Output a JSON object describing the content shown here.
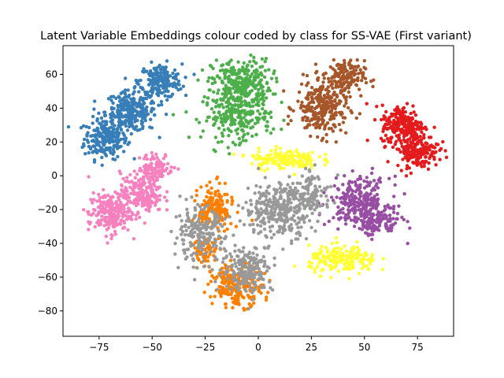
{
  "chart_data": {
    "type": "scatter",
    "title": "Latent Variable Embeddings colour coded by class for SS-VAE (First variant)",
    "xlabel": "",
    "ylabel": "",
    "xlim": [
      -92,
      92
    ],
    "ylim": [
      -95,
      77
    ],
    "xticks": [
      -75,
      -50,
      -25,
      0,
      25,
      50,
      75
    ],
    "yticks": [
      -80,
      -60,
      -40,
      -20,
      0,
      20,
      40,
      60
    ],
    "xtick_labels": [
      "−75",
      "−50",
      "−25",
      "0",
      "25",
      "50",
      "75"
    ],
    "ytick_labels": [
      "−80",
      "−60",
      "−40",
      "−20",
      "0",
      "20",
      "40",
      "60"
    ],
    "grid": false,
    "legend": "none",
    "series": [
      {
        "color": "#377eb8",
        "clusters": [
          {
            "cx": -72,
            "cy": 22,
            "sx": 5,
            "sy": 6,
            "n": 220
          },
          {
            "cx": -60,
            "cy": 38,
            "sx": 6,
            "sy": 6,
            "n": 260
          },
          {
            "cx": -46,
            "cy": 56,
            "sx": 5,
            "sy": 5,
            "n": 200
          }
        ]
      },
      {
        "color": "#4daf4a",
        "clusters": [
          {
            "cx": -8,
            "cy": 55,
            "sx": 7,
            "sy": 7,
            "n": 280
          },
          {
            "cx": -10,
            "cy": 35,
            "sx": 8,
            "sy": 7,
            "n": 240
          }
        ]
      },
      {
        "color": "#a65628",
        "clusters": [
          {
            "cx": 30,
            "cy": 40,
            "sx": 6,
            "sy": 8,
            "n": 260
          },
          {
            "cx": 40,
            "cy": 58,
            "sx": 5,
            "sy": 5,
            "n": 160
          }
        ]
      },
      {
        "color": "#e41a1c",
        "clusters": [
          {
            "cx": 68,
            "cy": 30,
            "sx": 5,
            "sy": 6,
            "n": 220
          },
          {
            "cx": 75,
            "cy": 15,
            "sx": 5,
            "sy": 5,
            "n": 180
          }
        ]
      },
      {
        "color": "#f781bf",
        "clusters": [
          {
            "cx": -70,
            "cy": -22,
            "sx": 5,
            "sy": 6,
            "n": 220
          },
          {
            "cx": -55,
            "cy": -10,
            "sx": 5,
            "sy": 6,
            "n": 200
          },
          {
            "cx": -48,
            "cy": 5,
            "sx": 4,
            "sy": 4,
            "n": 100
          }
        ]
      },
      {
        "color": "#ffff33",
        "clusters": [
          {
            "cx": 12,
            "cy": 10,
            "sx": 8,
            "sy": 3,
            "n": 160
          },
          {
            "cx": 40,
            "cy": -50,
            "sx": 8,
            "sy": 4,
            "n": 200
          }
        ]
      },
      {
        "color": "#984ea3",
        "clusters": [
          {
            "cx": 48,
            "cy": -15,
            "sx": 7,
            "sy": 7,
            "n": 260
          },
          {
            "cx": 55,
            "cy": -28,
            "sx": 6,
            "sy": 4,
            "n": 120
          }
        ]
      },
      {
        "color": "#ff7f00",
        "clusters": [
          {
            "cx": -20,
            "cy": -20,
            "sx": 4,
            "sy": 7,
            "n": 180
          },
          {
            "cx": -10,
            "cy": -65,
            "sx": 6,
            "sy": 6,
            "n": 220
          },
          {
            "cx": -25,
            "cy": -45,
            "sx": 3,
            "sy": 4,
            "n": 60
          }
        ]
      },
      {
        "color": "#999999",
        "clusters": [
          {
            "cx": 10,
            "cy": -20,
            "sx": 8,
            "sy": 8,
            "n": 320
          },
          {
            "cx": -28,
            "cy": -35,
            "sx": 6,
            "sy": 8,
            "n": 200
          },
          {
            "cx": -5,
            "cy": -55,
            "sx": 6,
            "sy": 7,
            "n": 200
          },
          {
            "cx": 25,
            "cy": -10,
            "sx": 5,
            "sy": 6,
            "n": 100
          }
        ]
      }
    ]
  }
}
